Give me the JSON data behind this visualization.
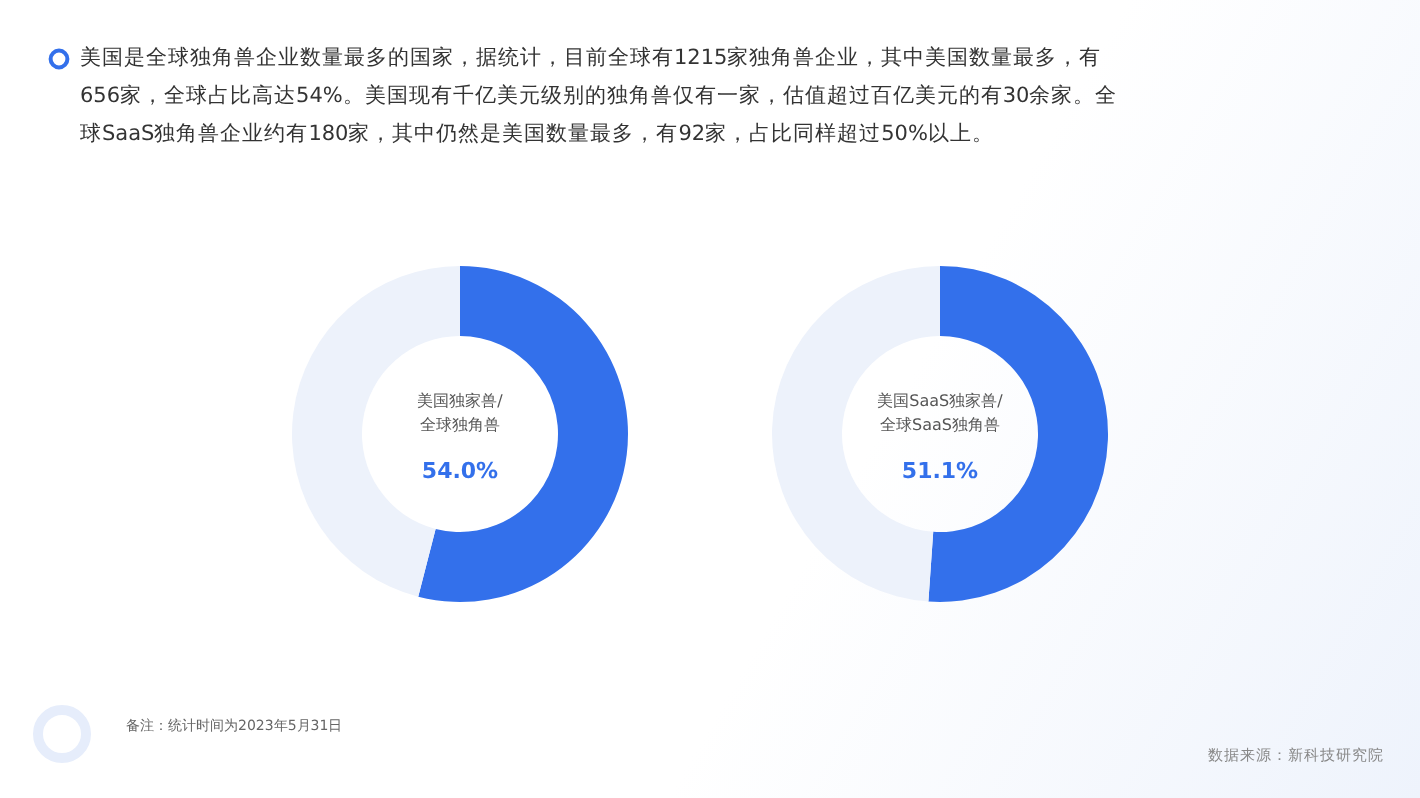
{
  "chart_data": [
    {
      "type": "other",
      "annotations": [
        "美国是全球独角兽企业数量最多的国家，据统计，目前全球有1215家独角兽企业，其中美国数量最多，有656家，全球占比高达54%。美国现有千亿美元级别的独角兽仅有一家，估值超过百亿美元的有30余家。全球SaaS独角兽企业约有180家，其中仍然是美国数量最多，有92家，占比同样超过50%以上。",
        "备注：统计时间为2023年5月31日",
        "数据来源：新科技研究院"
      ]
    },
    {
      "type": "donut",
      "title": "美国独家兽/\n全球独角兽",
      "categories": [
        null,
        null
      ],
      "values": [
        54.0,
        46.0
      ],
      "colors": [
        "#3370eb",
        "#edf2fb"
      ],
      "value_labels": [
        "54.0%",
        null
      ]
    },
    {
      "type": "donut",
      "title": "美国SaaS独家兽/\n全球SaaS独角兽",
      "categories": [
        null,
        null
      ],
      "values": [
        51.1,
        48.9
      ],
      "colors": [
        "#3370eb",
        "#edf2fb"
      ],
      "value_labels": [
        "51.1%",
        null
      ]
    }
  ]
}
